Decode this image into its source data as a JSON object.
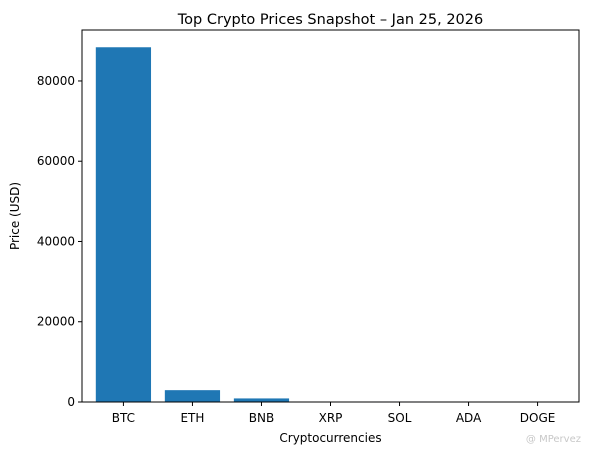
{
  "chart_data": {
    "type": "bar",
    "title": "Top Crypto Prices Snapshot – Jan 25, 2026",
    "xlabel": "Cryptocurrencies",
    "ylabel": "Price (USD)",
    "categories": [
      "BTC",
      "ETH",
      "BNB",
      "XRP",
      "SOL",
      "ADA",
      "DOGE"
    ],
    "values": [
      88400,
      2950,
      890,
      1.9,
      125,
      0.36,
      0.12
    ],
    "ylim": [
      0,
      92700
    ],
    "yticks": [
      0,
      20000,
      40000,
      60000,
      80000
    ],
    "grid": false,
    "legend": "none",
    "bar_color": "#1f77b4"
  },
  "watermark": "@ MPervez"
}
